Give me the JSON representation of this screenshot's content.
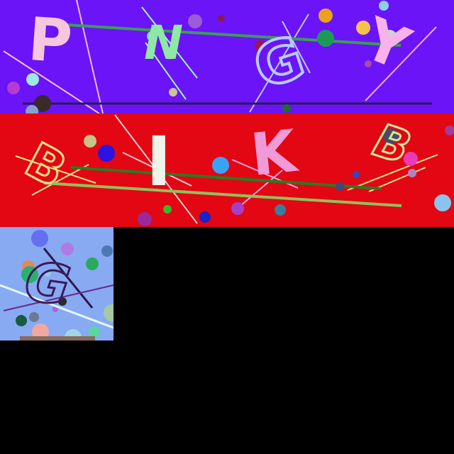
{
  "colors": {
    "background": "#000000",
    "panel_1_background": "#6a14f7",
    "panel_2_background": "#e30613",
    "panel_3_background": "#87aaf2"
  },
  "panels": [
    {
      "glyphs": [
        "P",
        "N",
        "G",
        "Y"
      ]
    },
    {
      "glyphs": [
        "B",
        "I",
        "K",
        "B"
      ]
    },
    {
      "glyphs": [
        "G"
      ]
    }
  ]
}
